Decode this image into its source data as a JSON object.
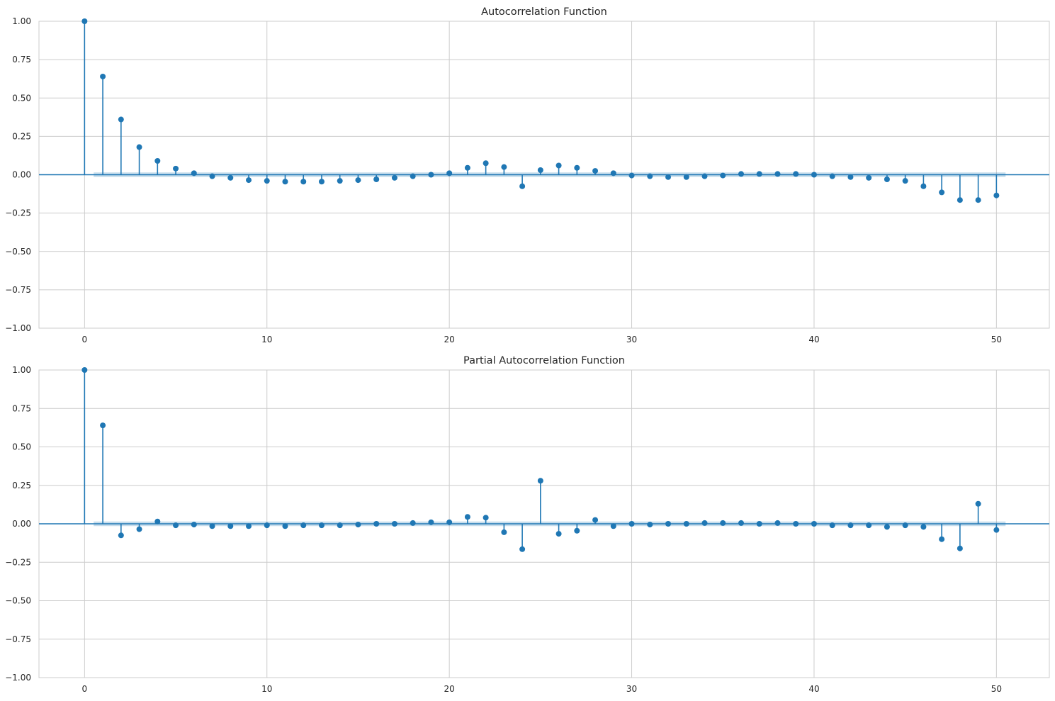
{
  "chart_data": [
    {
      "type": "stem",
      "title": "Autocorrelation Function",
      "xlabel": "",
      "ylabel": "",
      "xlim": [
        -2.5,
        52.9
      ],
      "ylim": [
        -1.0,
        1.0
      ],
      "xticks": [
        0,
        10,
        20,
        30,
        40,
        50
      ],
      "xtick_labels": [
        "0",
        "10",
        "20",
        "30",
        "40",
        "50"
      ],
      "yticks": [
        1.0,
        0.75,
        0.5,
        0.25,
        0.0,
        -0.25,
        -0.5,
        -0.75,
        -1.0
      ],
      "ytick_labels": [
        "1.00",
        "0.75",
        "0.50",
        "0.25",
        "0.00",
        "−0.25",
        "−0.50",
        "−0.75",
        "−1.00"
      ],
      "grid": true,
      "colors": {
        "stem": "#1f77b4",
        "confidence_band": "#1f77b4"
      },
      "confidence_interval": {
        "lags": [
          0.5,
          50.5
        ],
        "lower": -0.015,
        "upper": 0.015
      },
      "lags": [
        0,
        1,
        2,
        3,
        4,
        5,
        6,
        7,
        8,
        9,
        10,
        11,
        12,
        13,
        14,
        15,
        16,
        17,
        18,
        19,
        20,
        21,
        22,
        23,
        24,
        25,
        26,
        27,
        28,
        29,
        30,
        31,
        32,
        33,
        34,
        35,
        36,
        37,
        38,
        39,
        40,
        41,
        42,
        43,
        44,
        45,
        46,
        47,
        48,
        49,
        50
      ],
      "values": [
        1.0,
        0.64,
        0.36,
        0.18,
        0.09,
        0.04,
        0.01,
        -0.01,
        -0.02,
        -0.035,
        -0.04,
        -0.045,
        -0.045,
        -0.045,
        -0.04,
        -0.035,
        -0.03,
        -0.02,
        -0.01,
        0.0,
        0.01,
        0.045,
        0.075,
        0.05,
        -0.075,
        0.03,
        0.06,
        0.045,
        0.025,
        0.01,
        -0.005,
        -0.01,
        -0.015,
        -0.015,
        -0.01,
        -0.005,
        0.005,
        0.005,
        0.005,
        0.005,
        0.0,
        -0.01,
        -0.015,
        -0.02,
        -0.03,
        -0.04,
        -0.075,
        -0.115,
        -0.165,
        -0.165,
        -0.135
      ]
    },
    {
      "type": "stem",
      "title": "Partial Autocorrelation Function",
      "xlabel": "",
      "ylabel": "",
      "xlim": [
        -2.5,
        52.9
      ],
      "ylim": [
        -1.0,
        1.0
      ],
      "xticks": [
        0,
        10,
        20,
        30,
        40,
        50
      ],
      "xtick_labels": [
        "0",
        "10",
        "20",
        "30",
        "40",
        "50"
      ],
      "yticks": [
        1.0,
        0.75,
        0.5,
        0.25,
        0.0,
        -0.25,
        -0.5,
        -0.75,
        -1.0
      ],
      "ytick_labels": [
        "1.00",
        "0.75",
        "0.50",
        "0.25",
        "0.00",
        "−0.25",
        "−0.50",
        "−0.75",
        "−1.00"
      ],
      "grid": true,
      "colors": {
        "stem": "#1f77b4",
        "confidence_band": "#1f77b4"
      },
      "confidence_interval": {
        "lags": [
          0.5,
          50.5
        ],
        "lower": -0.015,
        "upper": 0.015
      },
      "lags": [
        0,
        1,
        2,
        3,
        4,
        5,
        6,
        7,
        8,
        9,
        10,
        11,
        12,
        13,
        14,
        15,
        16,
        17,
        18,
        19,
        20,
        21,
        22,
        23,
        24,
        25,
        26,
        27,
        28,
        29,
        30,
        31,
        32,
        33,
        34,
        35,
        36,
        37,
        38,
        39,
        40,
        41,
        42,
        43,
        44,
        45,
        46,
        47,
        48,
        49,
        50
      ],
      "values": [
        1.0,
        0.64,
        -0.075,
        -0.035,
        0.015,
        -0.01,
        -0.005,
        -0.015,
        -0.015,
        -0.015,
        -0.01,
        -0.015,
        -0.01,
        -0.01,
        -0.01,
        -0.005,
        0.0,
        0.0,
        0.005,
        0.01,
        0.01,
        0.045,
        0.04,
        -0.055,
        -0.165,
        0.28,
        -0.065,
        -0.045,
        0.025,
        -0.015,
        0.0,
        -0.005,
        0.0,
        0.0,
        0.005,
        0.005,
        0.005,
        0.0,
        0.005,
        0.0,
        0.0,
        -0.01,
        -0.01,
        -0.01,
        -0.02,
        -0.01,
        -0.02,
        -0.1,
        -0.16,
        0.13,
        -0.04
      ]
    }
  ]
}
